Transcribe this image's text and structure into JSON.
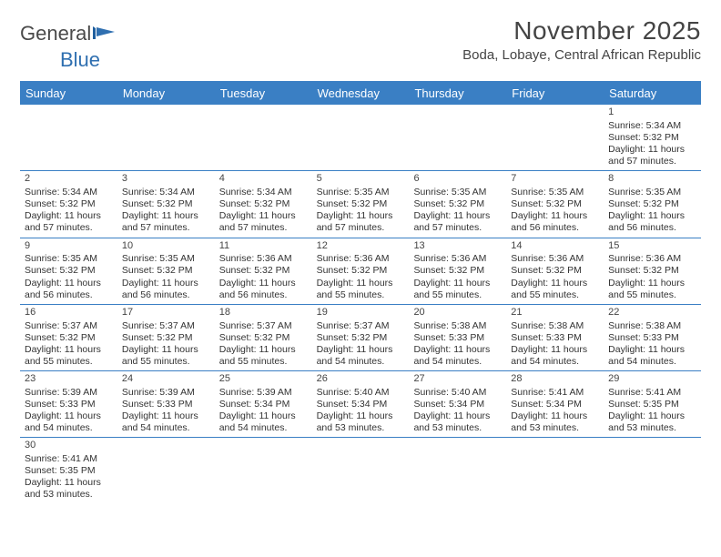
{
  "logo": {
    "text1": "General",
    "text2": "Blue"
  },
  "title": "November 2025",
  "location": "Boda, Lobaye, Central African Republic",
  "colors": {
    "header_bg": "#3a7fc4",
    "header_text": "#ffffff",
    "rule": "#3a7fc4",
    "body_text": "#333333",
    "page_bg": "#ffffff"
  },
  "weekdays": [
    "Sunday",
    "Monday",
    "Tuesday",
    "Wednesday",
    "Thursday",
    "Friday",
    "Saturday"
  ],
  "weeks": [
    [
      null,
      null,
      null,
      null,
      null,
      null,
      {
        "n": "1",
        "sr": "Sunrise: 5:34 AM",
        "ss": "Sunset: 5:32 PM",
        "d1": "Daylight: 11 hours",
        "d2": "and 57 minutes."
      }
    ],
    [
      {
        "n": "2",
        "sr": "Sunrise: 5:34 AM",
        "ss": "Sunset: 5:32 PM",
        "d1": "Daylight: 11 hours",
        "d2": "and 57 minutes."
      },
      {
        "n": "3",
        "sr": "Sunrise: 5:34 AM",
        "ss": "Sunset: 5:32 PM",
        "d1": "Daylight: 11 hours",
        "d2": "and 57 minutes."
      },
      {
        "n": "4",
        "sr": "Sunrise: 5:34 AM",
        "ss": "Sunset: 5:32 PM",
        "d1": "Daylight: 11 hours",
        "d2": "and 57 minutes."
      },
      {
        "n": "5",
        "sr": "Sunrise: 5:35 AM",
        "ss": "Sunset: 5:32 PM",
        "d1": "Daylight: 11 hours",
        "d2": "and 57 minutes."
      },
      {
        "n": "6",
        "sr": "Sunrise: 5:35 AM",
        "ss": "Sunset: 5:32 PM",
        "d1": "Daylight: 11 hours",
        "d2": "and 57 minutes."
      },
      {
        "n": "7",
        "sr": "Sunrise: 5:35 AM",
        "ss": "Sunset: 5:32 PM",
        "d1": "Daylight: 11 hours",
        "d2": "and 56 minutes."
      },
      {
        "n": "8",
        "sr": "Sunrise: 5:35 AM",
        "ss": "Sunset: 5:32 PM",
        "d1": "Daylight: 11 hours",
        "d2": "and 56 minutes."
      }
    ],
    [
      {
        "n": "9",
        "sr": "Sunrise: 5:35 AM",
        "ss": "Sunset: 5:32 PM",
        "d1": "Daylight: 11 hours",
        "d2": "and 56 minutes."
      },
      {
        "n": "10",
        "sr": "Sunrise: 5:35 AM",
        "ss": "Sunset: 5:32 PM",
        "d1": "Daylight: 11 hours",
        "d2": "and 56 minutes."
      },
      {
        "n": "11",
        "sr": "Sunrise: 5:36 AM",
        "ss": "Sunset: 5:32 PM",
        "d1": "Daylight: 11 hours",
        "d2": "and 56 minutes."
      },
      {
        "n": "12",
        "sr": "Sunrise: 5:36 AM",
        "ss": "Sunset: 5:32 PM",
        "d1": "Daylight: 11 hours",
        "d2": "and 55 minutes."
      },
      {
        "n": "13",
        "sr": "Sunrise: 5:36 AM",
        "ss": "Sunset: 5:32 PM",
        "d1": "Daylight: 11 hours",
        "d2": "and 55 minutes."
      },
      {
        "n": "14",
        "sr": "Sunrise: 5:36 AM",
        "ss": "Sunset: 5:32 PM",
        "d1": "Daylight: 11 hours",
        "d2": "and 55 minutes."
      },
      {
        "n": "15",
        "sr": "Sunrise: 5:36 AM",
        "ss": "Sunset: 5:32 PM",
        "d1": "Daylight: 11 hours",
        "d2": "and 55 minutes."
      }
    ],
    [
      {
        "n": "16",
        "sr": "Sunrise: 5:37 AM",
        "ss": "Sunset: 5:32 PM",
        "d1": "Daylight: 11 hours",
        "d2": "and 55 minutes."
      },
      {
        "n": "17",
        "sr": "Sunrise: 5:37 AM",
        "ss": "Sunset: 5:32 PM",
        "d1": "Daylight: 11 hours",
        "d2": "and 55 minutes."
      },
      {
        "n": "18",
        "sr": "Sunrise: 5:37 AM",
        "ss": "Sunset: 5:32 PM",
        "d1": "Daylight: 11 hours",
        "d2": "and 55 minutes."
      },
      {
        "n": "19",
        "sr": "Sunrise: 5:37 AM",
        "ss": "Sunset: 5:32 PM",
        "d1": "Daylight: 11 hours",
        "d2": "and 54 minutes."
      },
      {
        "n": "20",
        "sr": "Sunrise: 5:38 AM",
        "ss": "Sunset: 5:33 PM",
        "d1": "Daylight: 11 hours",
        "d2": "and 54 minutes."
      },
      {
        "n": "21",
        "sr": "Sunrise: 5:38 AM",
        "ss": "Sunset: 5:33 PM",
        "d1": "Daylight: 11 hours",
        "d2": "and 54 minutes."
      },
      {
        "n": "22",
        "sr": "Sunrise: 5:38 AM",
        "ss": "Sunset: 5:33 PM",
        "d1": "Daylight: 11 hours",
        "d2": "and 54 minutes."
      }
    ],
    [
      {
        "n": "23",
        "sr": "Sunrise: 5:39 AM",
        "ss": "Sunset: 5:33 PM",
        "d1": "Daylight: 11 hours",
        "d2": "and 54 minutes."
      },
      {
        "n": "24",
        "sr": "Sunrise: 5:39 AM",
        "ss": "Sunset: 5:33 PM",
        "d1": "Daylight: 11 hours",
        "d2": "and 54 minutes."
      },
      {
        "n": "25",
        "sr": "Sunrise: 5:39 AM",
        "ss": "Sunset: 5:34 PM",
        "d1": "Daylight: 11 hours",
        "d2": "and 54 minutes."
      },
      {
        "n": "26",
        "sr": "Sunrise: 5:40 AM",
        "ss": "Sunset: 5:34 PM",
        "d1": "Daylight: 11 hours",
        "d2": "and 53 minutes."
      },
      {
        "n": "27",
        "sr": "Sunrise: 5:40 AM",
        "ss": "Sunset: 5:34 PM",
        "d1": "Daylight: 11 hours",
        "d2": "and 53 minutes."
      },
      {
        "n": "28",
        "sr": "Sunrise: 5:41 AM",
        "ss": "Sunset: 5:34 PM",
        "d1": "Daylight: 11 hours",
        "d2": "and 53 minutes."
      },
      {
        "n": "29",
        "sr": "Sunrise: 5:41 AM",
        "ss": "Sunset: 5:35 PM",
        "d1": "Daylight: 11 hours",
        "d2": "and 53 minutes."
      }
    ],
    [
      {
        "n": "30",
        "sr": "Sunrise: 5:41 AM",
        "ss": "Sunset: 5:35 PM",
        "d1": "Daylight: 11 hours",
        "d2": "and 53 minutes."
      },
      null,
      null,
      null,
      null,
      null,
      null
    ]
  ]
}
